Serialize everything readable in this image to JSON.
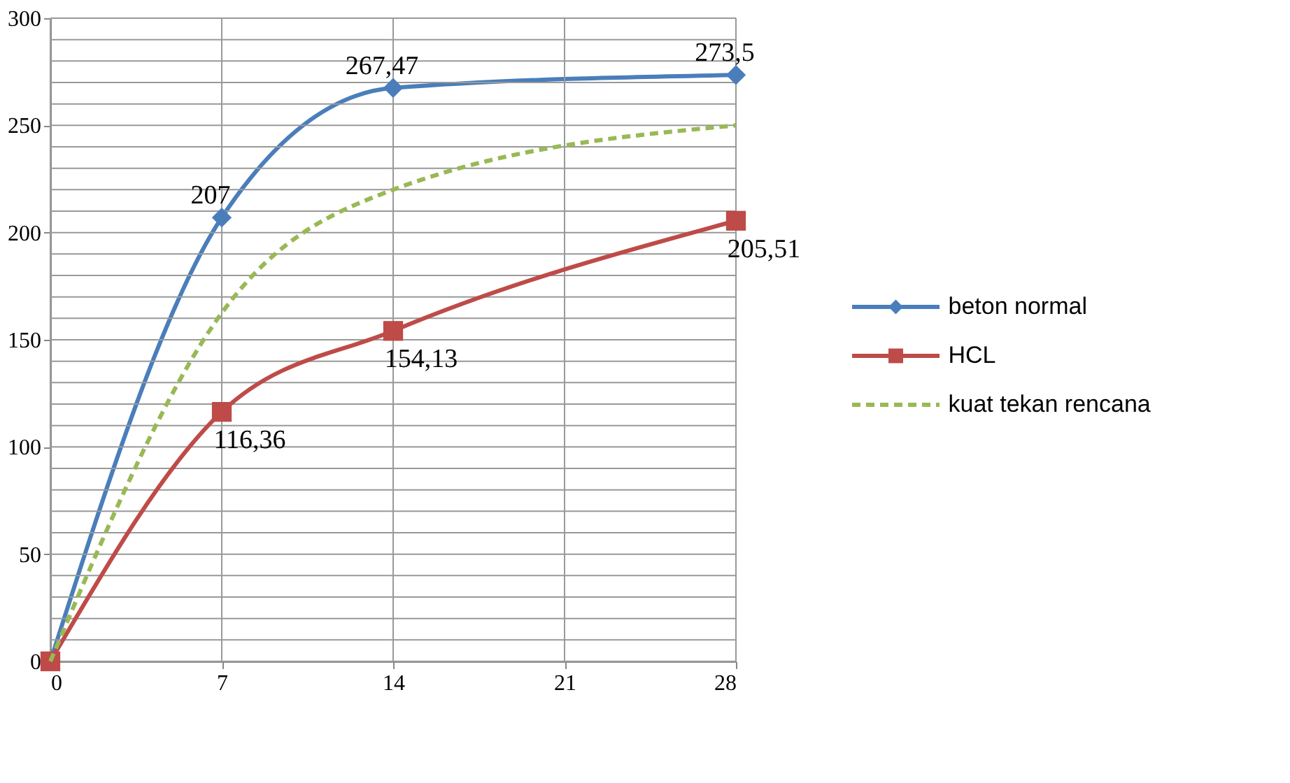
{
  "chart_data": {
    "type": "line",
    "x": [
      0,
      7,
      14,
      28
    ],
    "series": [
      {
        "name": "beton normal",
        "color": "#4a7ebb",
        "values": [
          0,
          207,
          267.47,
          273.5
        ],
        "marker": "diamond",
        "line_style": "solid",
        "value_labels": [
          null,
          "207",
          "267,47",
          "273,5"
        ]
      },
      {
        "name": "HCL",
        "color": "#be4b48",
        "values": [
          0,
          116.36,
          154.13,
          205.51
        ],
        "marker": "square",
        "line_style": "solid",
        "value_labels": [
          null,
          "116,36",
          "154,13",
          "205,51"
        ]
      },
      {
        "name": "kuat tekan rencana",
        "color": "#98b954",
        "values": [
          0,
          162.5,
          220,
          250
        ],
        "marker": "none",
        "line_style": "dashed"
      }
    ],
    "xlim": [
      0,
      28
    ],
    "xticks": [
      0,
      7,
      14,
      21,
      28
    ],
    "ylim": [
      0,
      300
    ],
    "yticks": [
      0,
      {
        "value": 10,
        "label": null
      },
      {
        "value": 20,
        "label": null
      },
      {
        "value": 30,
        "label": null
      },
      {
        "value": 40,
        "label": null
      },
      50,
      {
        "value": 60,
        "label": null
      },
      {
        "value": 70,
        "label": null
      },
      {
        "value": 80,
        "label": null
      },
      {
        "value": 90,
        "label": null
      },
      100,
      {
        "value": 110,
        "label": null
      },
      {
        "value": 120,
        "label": null
      },
      {
        "value": 130,
        "label": null
      },
      {
        "value": 140,
        "label": null
      },
      150,
      {
        "value": 160,
        "label": null
      },
      {
        "value": 170,
        "label": null
      },
      {
        "value": 180,
        "label": null
      },
      {
        "value": 190,
        "label": null
      },
      200,
      {
        "value": 210,
        "label": null
      },
      {
        "value": 220,
        "label": null
      },
      {
        "value": 230,
        "label": null
      },
      {
        "value": 240,
        "label": null
      },
      250,
      {
        "value": 260,
        "label": null
      },
      {
        "value": 270,
        "label": null
      },
      {
        "value": 280,
        "label": null
      },
      {
        "value": 290,
        "label": null
      },
      300
    ],
    "grid": true,
    "legend": "right"
  }
}
